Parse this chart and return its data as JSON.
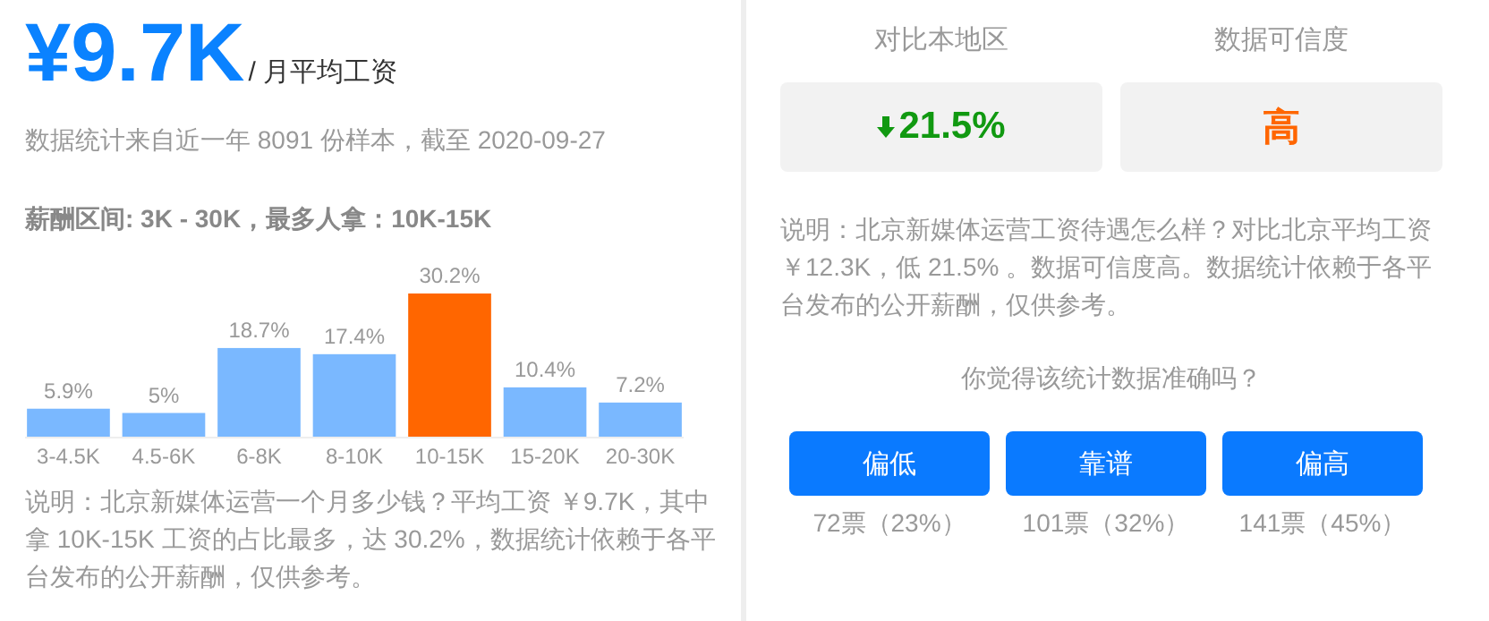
{
  "chart_data": [
    {
      "type": "bar",
      "title": "¥9.7K",
      "subtitle": "/ 月平均工资",
      "annotations": [
        "数据统计来自近一年 8091 份样本，截至 2020-09-27",
        "薪酬区间: 3K - 30K，最多人拿：10K-15K",
        "说明：北京新媒体运营一个月多少钱？平均工资 ￥9.7K，其中拿 10K-15K 工资的占比最多，达 30.2%，数据统计依赖于各平台发布的公开薪酬，仅供参考。"
      ],
      "categories": [
        "3-4.5K",
        "4.5-6K",
        "6-8K",
        "8-10K",
        "10-15K",
        "15-20K",
        "20-30K"
      ],
      "values": [
        5.9,
        5,
        18.7,
        17.4,
        30.2,
        10.4,
        7.2
      ],
      "value_labels": [
        "5.9%",
        "5%",
        "18.7%",
        "17.4%",
        "30.2%",
        "10.4%",
        "7.2%"
      ],
      "colors": [
        "#7ab8ff",
        "#7ab8ff",
        "#7ab8ff",
        "#7ab8ff",
        "#ff6600",
        "#7ab8ff",
        "#7ab8ff"
      ]
    },
    {
      "type": "other",
      "annotations": [
        "对比本地区",
        "数据可信度",
        "21.5%",
        "高",
        "说明：北京新媒体运营工资待遇怎么样？对比北京平均工资￥12.3K，低 21.5% 。数据可信度高。数据统计依赖于各平台发布的公开薪酬，仅供参考。",
        "你觉得该统计数据准确吗？",
        "偏低",
        "靠谱",
        "偏高",
        "72票（23%）",
        "101票（32%）",
        "141票（45%）"
      ]
    }
  ]
}
